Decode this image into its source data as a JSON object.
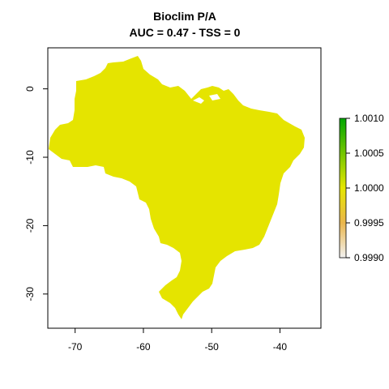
{
  "chart_data": {
    "type": "heatmap",
    "title": "Bioclim P/A",
    "subtitle": "AUC = 0.47 - TSS = 0",
    "region": "Brazil",
    "fill_value": 1.0,
    "fill_color": "#e5e400",
    "xlim": [
      -74,
      -34
    ],
    "ylim": [
      -35,
      6
    ],
    "x_ticks": [
      -70,
      -60,
      -50,
      -40
    ],
    "y_ticks": [
      0,
      -10,
      -20,
      -30
    ],
    "legend": {
      "placement": "right",
      "range": [
        0.999,
        1.001
      ],
      "ticks": [
        "1.0010",
        "1.0005",
        "1.0000",
        "0.9995",
        "0.9990"
      ],
      "colors": [
        "#00a600",
        "#e6e600",
        "#eab64c",
        "#f2f2f2"
      ]
    }
  }
}
